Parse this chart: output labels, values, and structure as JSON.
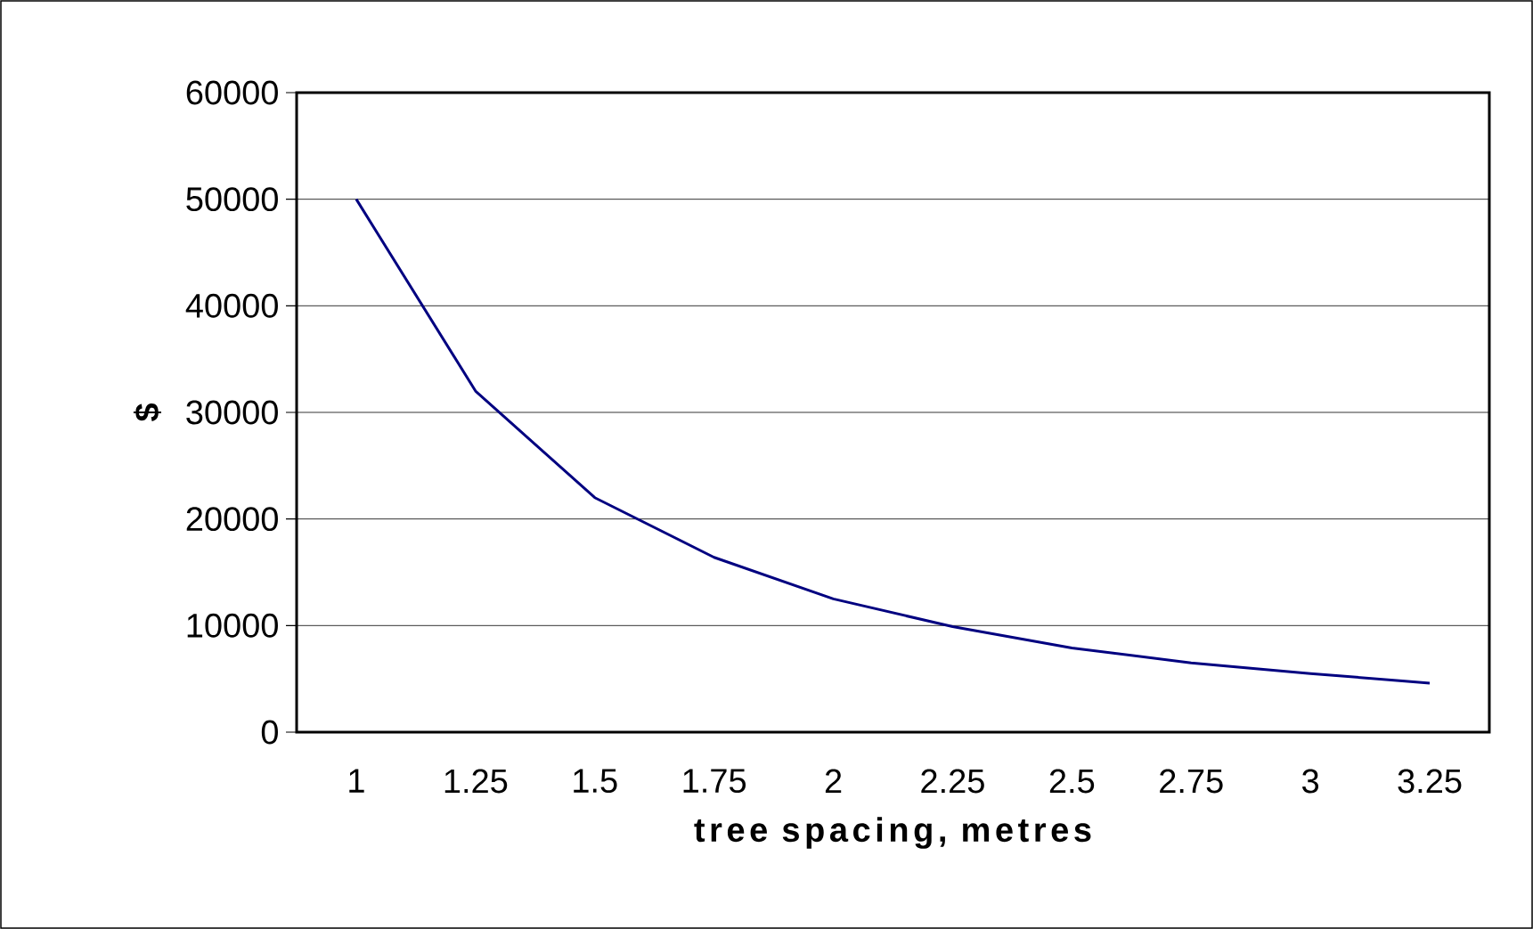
{
  "chart_data": {
    "type": "line",
    "xlabel": "tree spacing, metres",
    "ylabel": "$",
    "categories": [
      "1",
      "1.25",
      "1.5",
      "1.75",
      "2",
      "2.25",
      "2.5",
      "2.75",
      "3",
      "3.25"
    ],
    "values": [
      50000,
      32000,
      22000,
      16400,
      12500,
      9900,
      7900,
      6500,
      5500,
      4600
    ],
    "color": "#000080",
    "ylim": [
      0,
      60000
    ],
    "yticks": [
      0,
      10000,
      20000,
      30000,
      40000,
      50000,
      60000
    ],
    "grid": "y"
  }
}
